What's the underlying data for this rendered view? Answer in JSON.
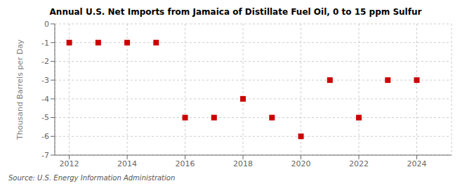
{
  "chart_data": {
    "type": "scatter",
    "title": "Annual U.S. Net Imports from Jamaica of Distillate Fuel Oil, 0 to 15 ppm Sulfur",
    "ylabel": "Thousand Barrels per Day",
    "annotation": "Source: U.S. Energy Information Administration",
    "x": [
      2012,
      2013,
      2014,
      2015,
      2016,
      2017,
      2018,
      2019,
      2020,
      2021,
      2022,
      2023,
      2024
    ],
    "values": [
      -1,
      -1,
      -1,
      -1,
      -5,
      -5,
      -4,
      -5,
      -6,
      -3,
      -5,
      -3,
      -3
    ],
    "color": "#cc0000",
    "marker": "square",
    "xlim": [
      2011.5,
      2025.2
    ],
    "xticks": [
      2012,
      2014,
      2016,
      2018,
      2020,
      2022,
      2024
    ],
    "ylim": [
      -7,
      0
    ],
    "yticks": [
      0,
      -1,
      -2,
      -3,
      -4,
      -5,
      -6,
      -7
    ],
    "grid": true
  }
}
